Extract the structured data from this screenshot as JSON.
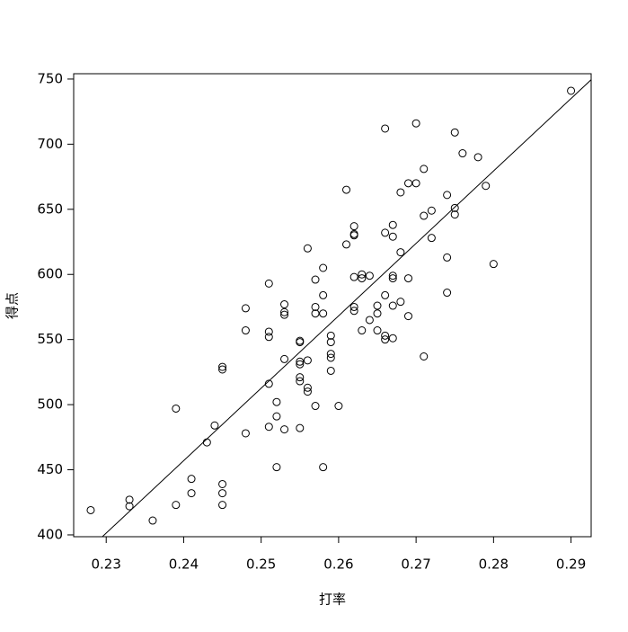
{
  "chart_data": {
    "type": "scatter",
    "xlabel": "打率",
    "ylabel": "得点",
    "x": [
      0.228,
      0.233,
      0.233,
      0.236,
      0.239,
      0.239,
      0.241,
      0.241,
      0.243,
      0.244,
      0.245,
      0.245,
      0.245,
      0.245,
      0.245,
      0.248,
      0.248,
      0.248,
      0.251,
      0.251,
      0.251,
      0.251,
      0.251,
      0.252,
      0.252,
      0.252,
      0.253,
      0.253,
      0.253,
      0.253,
      0.253,
      0.255,
      0.255,
      0.255,
      0.255,
      0.255,
      0.255,
      0.255,
      0.256,
      0.256,
      0.256,
      0.256,
      0.257,
      0.257,
      0.257,
      0.257,
      0.258,
      0.258,
      0.258,
      0.258,
      0.259,
      0.259,
      0.259,
      0.259,
      0.259,
      0.26,
      0.261,
      0.261,
      0.262,
      0.262,
      0.262,
      0.262,
      0.262,
      0.262,
      0.263,
      0.263,
      0.263,
      0.264,
      0.264,
      0.265,
      0.265,
      0.265,
      0.266,
      0.266,
      0.266,
      0.266,
      0.266,
      0.267,
      0.267,
      0.267,
      0.267,
      0.267,
      0.267,
      0.268,
      0.268,
      0.268,
      0.269,
      0.269,
      0.269,
      0.27,
      0.27,
      0.271,
      0.271,
      0.271,
      0.272,
      0.272,
      0.274,
      0.274,
      0.274,
      0.275,
      0.275,
      0.275,
      0.276,
      0.278,
      0.279,
      0.28,
      0.29
    ],
    "y": [
      419,
      427,
      422,
      411,
      497,
      423,
      443,
      432,
      471,
      484,
      529,
      527,
      439,
      432,
      423,
      574,
      557,
      478,
      593,
      556,
      552,
      516,
      483,
      502,
      491,
      452,
      577,
      571,
      569,
      535,
      481,
      549,
      548,
      533,
      531,
      521,
      518,
      482,
      620,
      534,
      513,
      510,
      596,
      575,
      570,
      499,
      605,
      584,
      570,
      452,
      553,
      548,
      539,
      536,
      526,
      499,
      665,
      623,
      637,
      631,
      630,
      598,
      575,
      572,
      600,
      597,
      557,
      599,
      565,
      576,
      570,
      557,
      712,
      632,
      584,
      553,
      550,
      638,
      629,
      599,
      597,
      576,
      551,
      663,
      617,
      579,
      670,
      597,
      568,
      716,
      670,
      681,
      645,
      537,
      649,
      628,
      661,
      613,
      586,
      709,
      651,
      646,
      693,
      690,
      668,
      608,
      741
    ],
    "fit": {
      "x": [
        0.2295,
        0.2926
      ],
      "y": [
        398.6,
        749.5
      ]
    },
    "color": "#000000",
    "xlim": [
      0.2258,
      0.2926
    ],
    "ylim": [
      398.6,
      754.1
    ],
    "xticks": [
      0.23,
      0.24,
      0.25,
      0.26,
      0.27,
      0.28,
      0.29
    ],
    "yticks": [
      400,
      450,
      500,
      550,
      600,
      650,
      700,
      750
    ]
  }
}
